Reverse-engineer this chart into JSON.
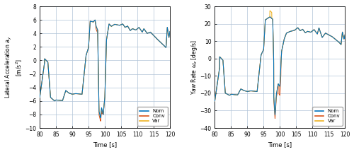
{
  "xlim": [
    80,
    120
  ],
  "ay_ylim": [
    -10,
    8
  ],
  "yr_ylim": [
    -40,
    30
  ],
  "ay_yticks": [
    -10,
    -8,
    -6,
    -4,
    -2,
    0,
    2,
    4,
    6,
    8
  ],
  "yr_yticks": [
    -40,
    -30,
    -20,
    -10,
    0,
    10,
    20,
    30
  ],
  "xticks": [
    80,
    85,
    90,
    95,
    100,
    105,
    110,
    115,
    120
  ],
  "xlabel": "Time [s]",
  "ay_ylabel": "Lateral Acceleration $a_y$\n[m/s$^2$]",
  "yr_ylabel": "Yaw Rate $\\omega_z$ [deg/s]",
  "legend_labels": [
    "Nom",
    "Conv",
    "Var"
  ],
  "colors": [
    "#0072BD",
    "#D95319",
    "#EDB120"
  ],
  "linewidth": 0.75,
  "fig_facecolor": "#ffffff",
  "ax_facecolor": "#ffffff",
  "grid_color": "#b0c4d8",
  "spine_color": "#000000"
}
